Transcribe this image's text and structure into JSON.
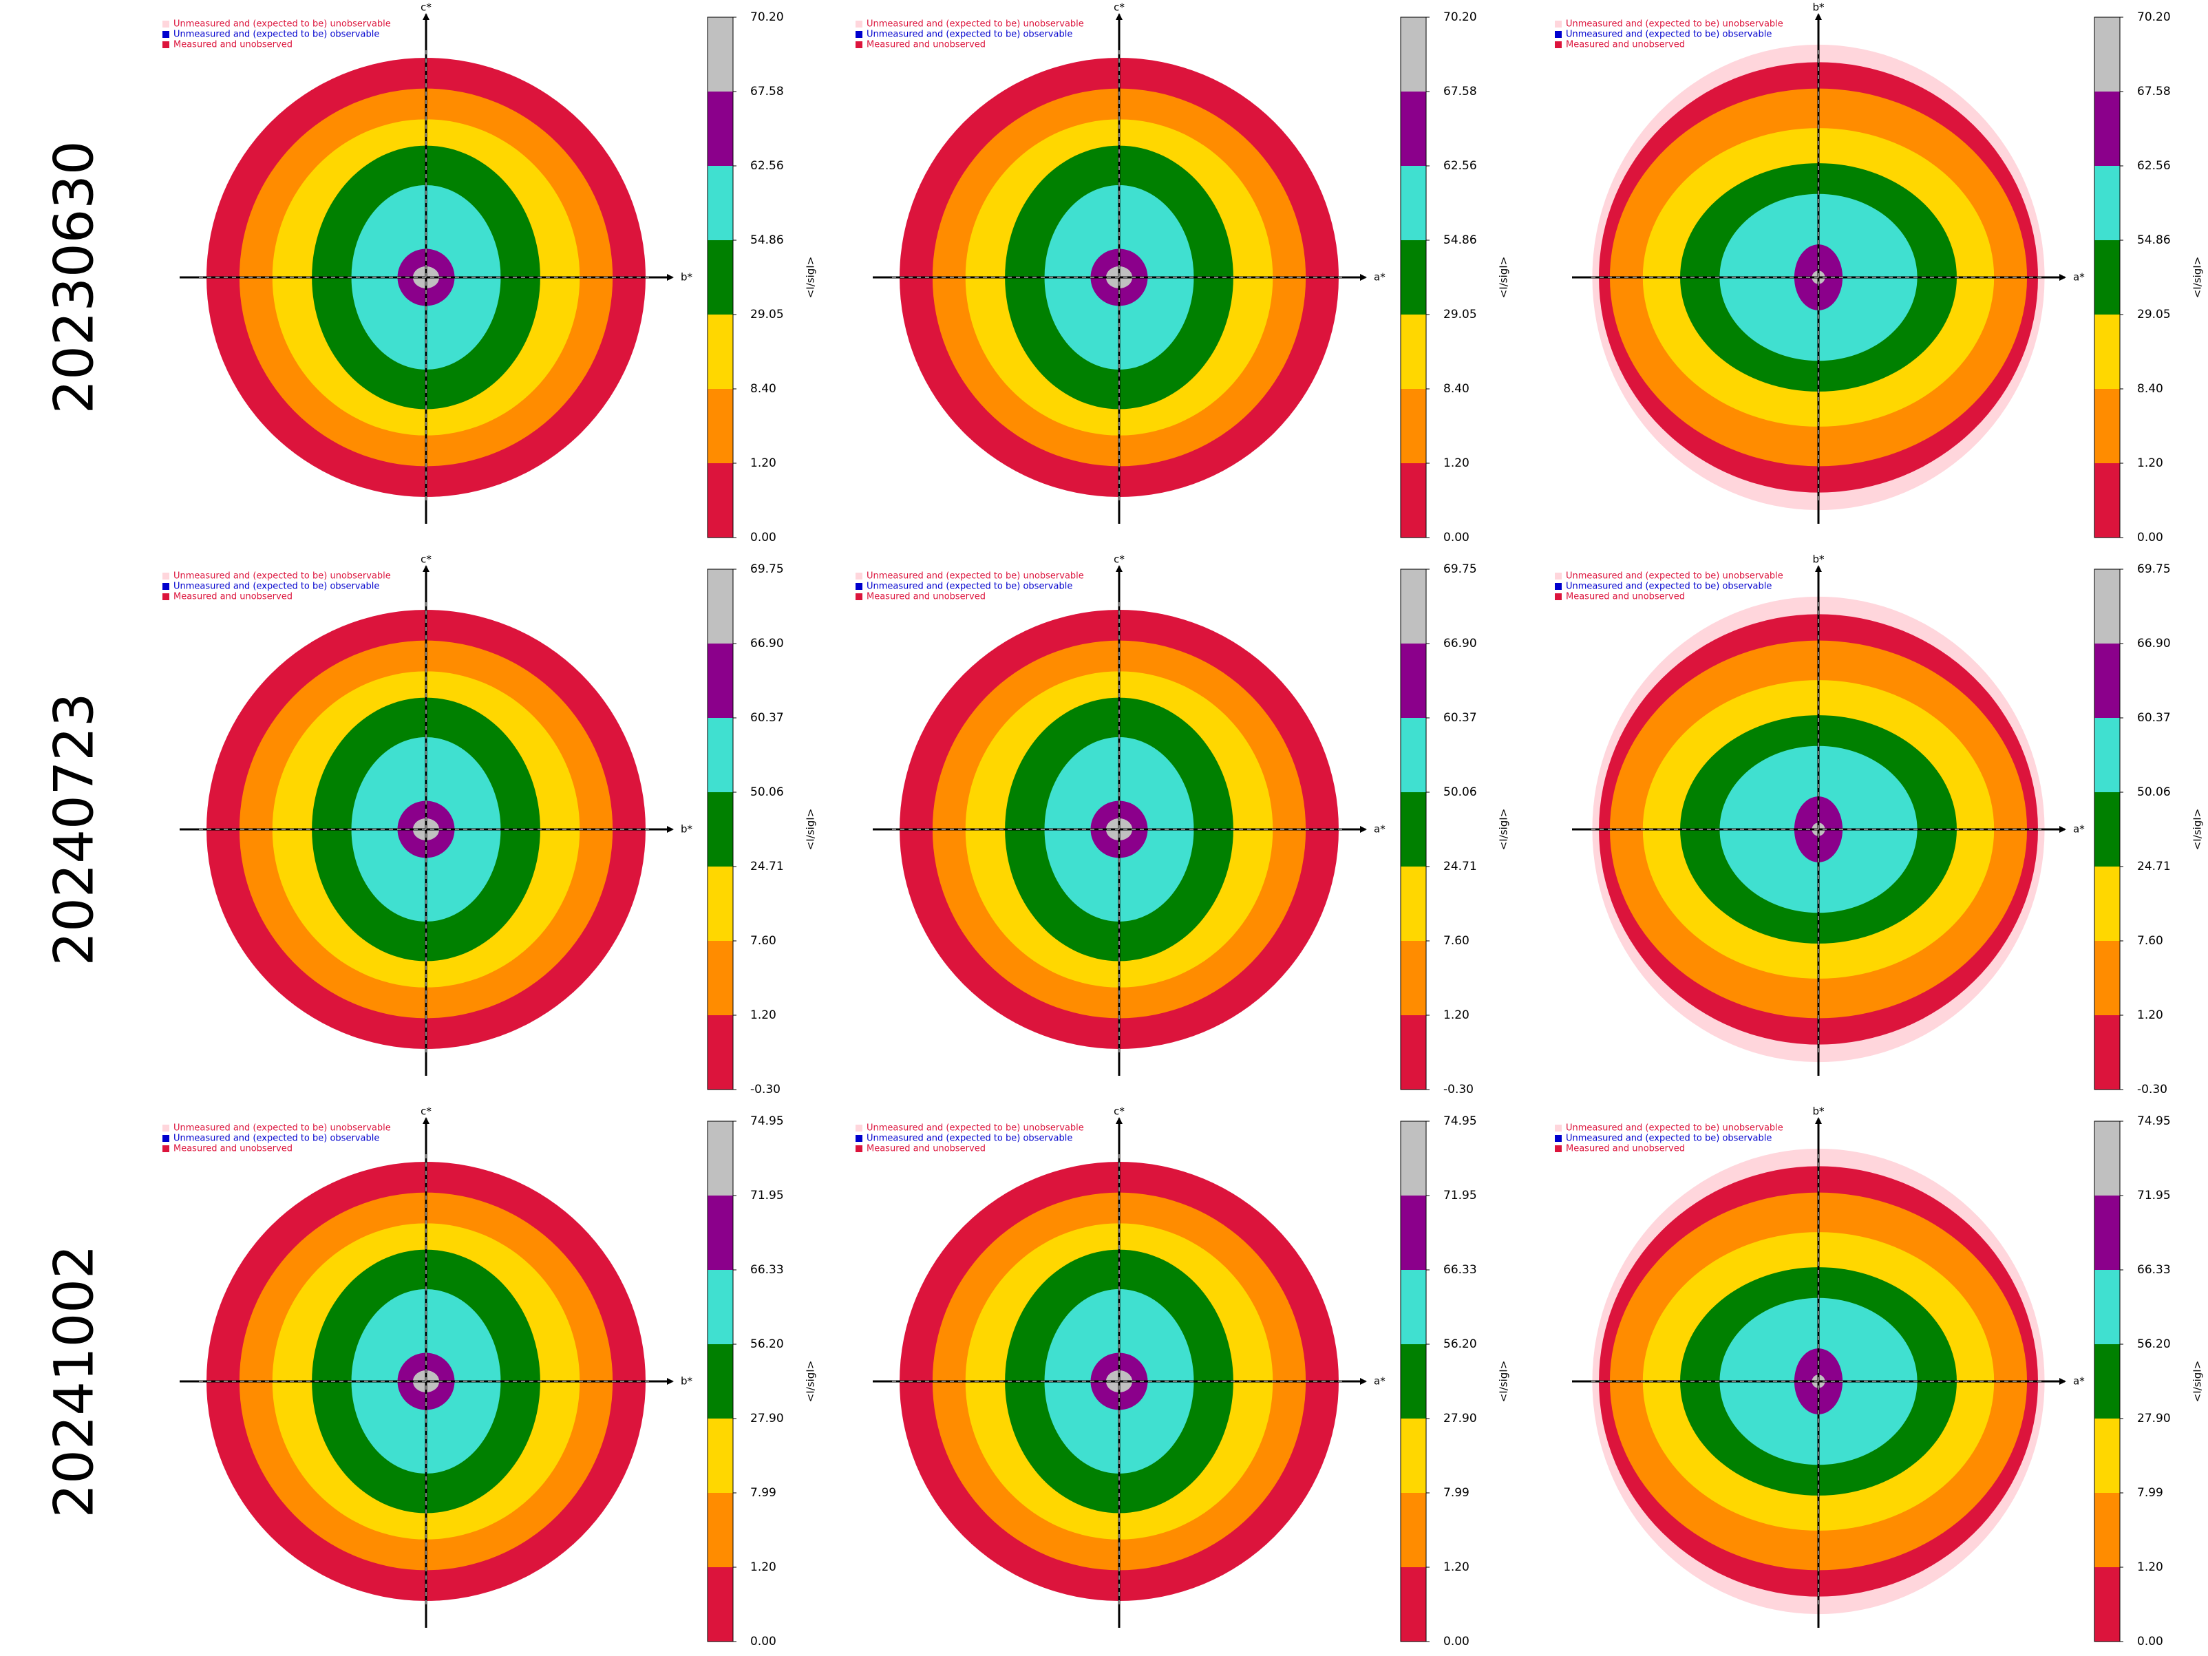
{
  "legend": [
    "Unmeasured and (expected to be) unobservable",
    "Unmeasured and (expected to be) observable",
    "Measured and unobserved"
  ],
  "legend_colors": [
    "#ffd6dc",
    "#0000cd",
    "#dc143c"
  ],
  "colorbar_label": "<I/sigI>",
  "colors": [
    "#dc143c",
    "#ff8c00",
    "#ffd700",
    "#008000",
    "#40e0d0",
    "#8b008b",
    "#c0c0c0"
  ],
  "rows": [
    {
      "label": "20230630",
      "ticks": [
        {
          "value": 0,
          "label": "0.00"
        },
        {
          "value": 1.2,
          "label": "1.20"
        },
        {
          "value": 8.4,
          "label": "8.40"
        },
        {
          "value": 29.05,
          "label": "29.05"
        },
        {
          "value": 54.86,
          "label": "54.86"
        },
        {
          "value": 62.56,
          "label": "62.56"
        },
        {
          "value": 67.58,
          "label": "67.58"
        },
        {
          "value": 70.2,
          "label": "70.20"
        }
      ],
      "panels": [
        {
          "h": "b*",
          "v": "c*"
        },
        {
          "h": "a*",
          "v": "c*"
        },
        {
          "h": "a*",
          "v": "b*"
        }
      ]
    },
    {
      "label": "20240723",
      "ticks": [
        {
          "value": -0.3,
          "label": "-0.30"
        },
        {
          "value": 1.2,
          "label": "1.20"
        },
        {
          "value": 7.6,
          "label": "7.60"
        },
        {
          "value": 24.71,
          "label": "24.71"
        },
        {
          "value": 50.06,
          "label": "50.06"
        },
        {
          "value": 60.37,
          "label": "60.37"
        },
        {
          "value": 66.9,
          "label": "66.90"
        },
        {
          "value": 69.75,
          "label": "69.75"
        }
      ],
      "panels": [
        {
          "h": "b*",
          "v": "c*"
        },
        {
          "h": "a*",
          "v": "c*"
        },
        {
          "h": "a*",
          "v": "b*"
        }
      ]
    },
    {
      "label": "20241002",
      "ticks": [
        {
          "value": 0,
          "label": "0.00"
        },
        {
          "value": 1.2,
          "label": "1.20"
        },
        {
          "value": 7.99,
          "label": "7.99"
        },
        {
          "value": 27.9,
          "label": "27.90"
        },
        {
          "value": 56.2,
          "label": "56.20"
        },
        {
          "value": 66.33,
          "label": "66.33"
        },
        {
          "value": 71.95,
          "label": "71.95"
        },
        {
          "value": 74.95,
          "label": "74.95"
        }
      ],
      "panels": [
        {
          "h": "b*",
          "v": "c*"
        },
        {
          "h": "a*",
          "v": "c*"
        },
        {
          "h": "a*",
          "v": "b*"
        }
      ]
    }
  ]
}
